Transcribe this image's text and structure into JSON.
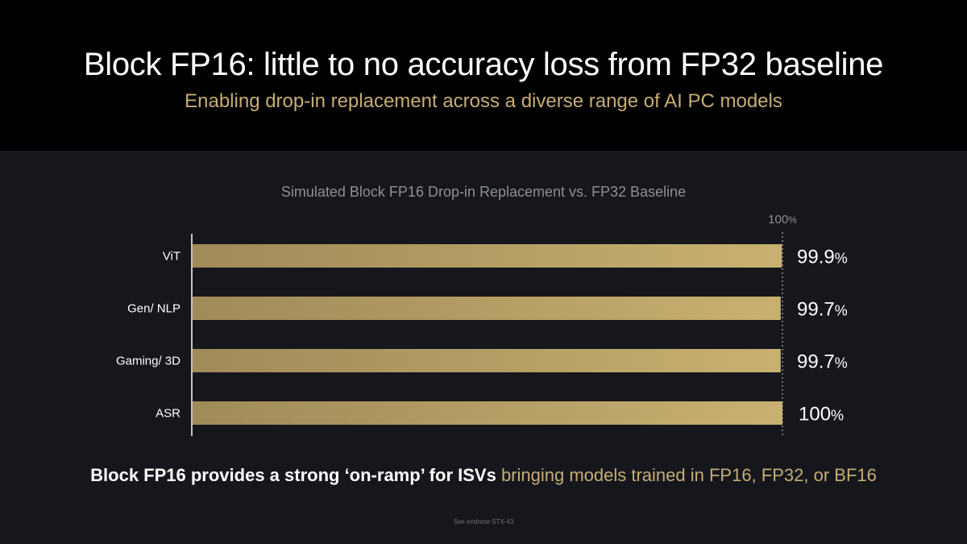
{
  "slide": {
    "title": "Block FP16: little to no accuracy loss from FP32 baseline",
    "subtitle": "Enabling drop-in replacement across a diverse range of AI PC models",
    "footer_bold": "Block FP16 provides a strong ‘on-ramp’ for ISVs",
    "footer_rest": " bringing models trained in FP16, FP32, or BF16",
    "endnote": "See endnote STX-43"
  },
  "chart_data": {
    "type": "bar",
    "orientation": "horizontal",
    "title": "Simulated Block FP16 Drop-in Replacement vs. FP32 Baseline",
    "categories": [
      "ViT",
      "Gen/ NLP",
      "Gaming/ 3D",
      "ASR"
    ],
    "values": [
      99.9,
      99.7,
      99.7,
      100
    ],
    "value_labels": [
      "99.9",
      "99.7",
      "99.7",
      "100"
    ],
    "unit": "%",
    "reference_line": {
      "value": 100,
      "label": "100",
      "unit": "%"
    },
    "colors": {
      "bar_start": "#a08a58",
      "bar_end": "#c8b170",
      "reference": "#8c8f96",
      "axis": "#ffffff"
    }
  }
}
